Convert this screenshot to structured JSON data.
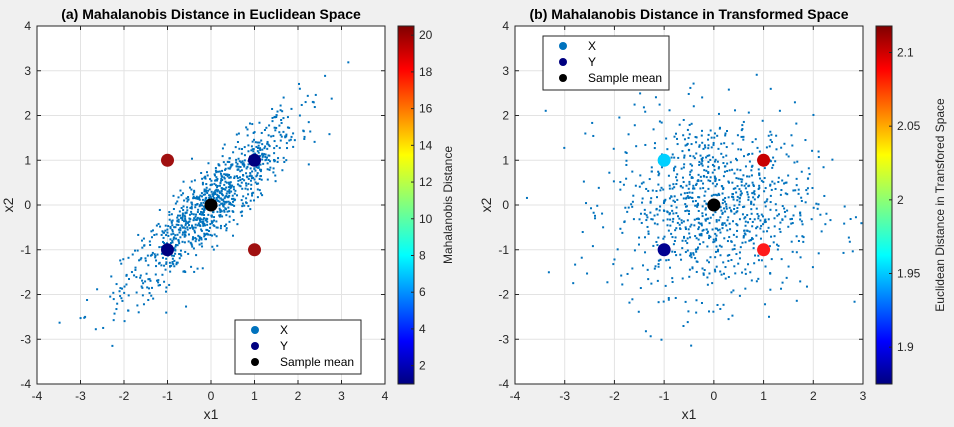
{
  "chart_data": [
    {
      "type": "scatter",
      "title": "(a) Mahalanobis Distance in Euclidean Space",
      "xlabel": "x1",
      "ylabel": "x2",
      "xlim": [
        -4,
        4
      ],
      "ylim": [
        -4,
        4
      ],
      "xticks": [
        -4,
        -3,
        -2,
        -1,
        0,
        1,
        2,
        3,
        4
      ],
      "yticks": [
        -4,
        -3,
        -2,
        -1,
        0,
        1,
        2,
        3,
        4
      ],
      "grid": true,
      "colorbar": {
        "label": "Mahalanobis Distance",
        "colormap": "jet",
        "range": [
          1,
          20.5
        ],
        "ticks": [
          2,
          4,
          6,
          8,
          10,
          12,
          14,
          16,
          18,
          20
        ]
      },
      "legend": {
        "placement": "bottom-right",
        "entries": [
          {
            "label": "X",
            "color": "#0072bd"
          },
          {
            "label": "Y",
            "color": "#000080"
          },
          {
            "label": "Sample mean",
            "color": "#000000"
          }
        ]
      },
      "series": [
        {
          "name": "X",
          "color": "#0072bd",
          "description": "~1000 samples, correlated Gaussian",
          "cov": [
            [
              1,
              0.9
            ],
            [
              0.9,
              1
            ]
          ],
          "n": 1000
        },
        {
          "name": "Y",
          "points": [
            {
              "x": -1,
              "y": 1,
              "value": 19.0,
              "color": "#a01010"
            },
            {
              "x": 1,
              "y": -1,
              "value": 19.0,
              "color": "#a01010"
            },
            {
              "x": -1,
              "y": -1,
              "value": 1.05,
              "color": "#000080"
            },
            {
              "x": 1,
              "y": 1,
              "value": 1.05,
              "color": "#000080"
            }
          ]
        },
        {
          "name": "Sample mean",
          "points": [
            {
              "x": 0,
              "y": 0,
              "color": "#000000"
            }
          ]
        }
      ]
    },
    {
      "type": "scatter",
      "title": "(b) Mahalanobis Distance in Transformed Space",
      "xlabel": "x1",
      "ylabel": "x2",
      "xlim": [
        -4,
        3
      ],
      "ylim": [
        -4,
        4
      ],
      "xticks": [
        -4,
        -3,
        -2,
        -1,
        0,
        1,
        2,
        3
      ],
      "yticks": [
        -4,
        -3,
        -2,
        -1,
        0,
        1,
        2,
        3,
        4
      ],
      "grid": true,
      "colorbar": {
        "label": "Euclidean Distance in Transfored Space",
        "colormap": "jet",
        "range": [
          1.875,
          2.118
        ],
        "ticks": [
          "1.9",
          "1.95",
          "2",
          "2.05",
          "2.1"
        ]
      },
      "legend": {
        "placement": "top-left",
        "entries": [
          {
            "label": "X",
            "color": "#0072bd"
          },
          {
            "label": "Y",
            "color": "#000080"
          },
          {
            "label": "Sample mean",
            "color": "#000000"
          }
        ]
      },
      "series": [
        {
          "name": "X",
          "color": "#0072bd",
          "description": "~1000 samples, whitened (uncorrelated) Gaussian",
          "cov": [
            [
              1,
              0
            ],
            [
              0,
              1
            ]
          ],
          "n": 1000
        },
        {
          "name": "Y",
          "points": [
            {
              "x": -1,
              "y": 1,
              "value": 1.96,
              "color": "#00d0ff"
            },
            {
              "x": 1,
              "y": 1,
              "value": 2.09,
              "color": "#c80000"
            },
            {
              "x": -1,
              "y": -1,
              "value": 1.89,
              "color": "#000090"
            },
            {
              "x": 1,
              "y": -1,
              "value": 2.08,
              "color": "#ff1a1a"
            }
          ]
        },
        {
          "name": "Sample mean",
          "points": [
            {
              "x": 0,
              "y": 0,
              "color": "#000000"
            }
          ]
        }
      ]
    }
  ]
}
